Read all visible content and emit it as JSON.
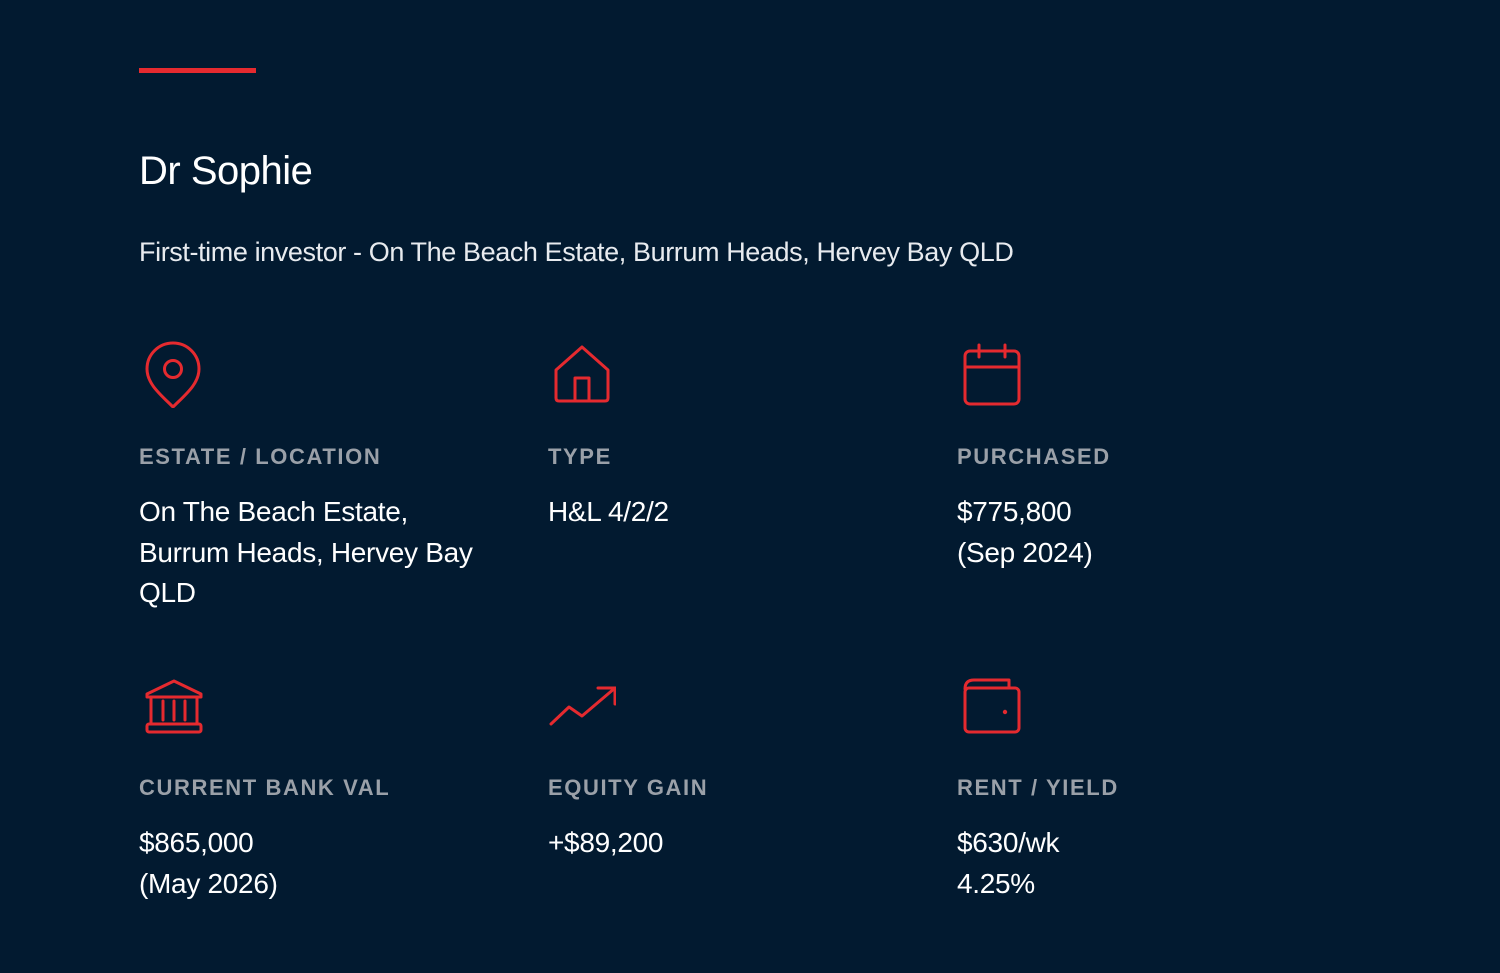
{
  "header": {
    "title": "Dr Sophie",
    "subtitle": "First-time investor - On The Beach Estate, Burrum Heads, Hervey Bay QLD"
  },
  "colors": {
    "background": "#021a30",
    "accent": "#e52a2f",
    "label": "#9aa0a8",
    "value": "#ffffff"
  },
  "stats": [
    {
      "icon": "location-pin-icon",
      "label": "ESTATE / LOCATION",
      "value": "On The Beach Estate,\nBurrum Heads, Hervey Bay\nQLD"
    },
    {
      "icon": "house-icon",
      "label": "TYPE",
      "value": "H&L 4/2/2"
    },
    {
      "icon": "calendar-icon",
      "label": "PURCHASED",
      "value": "$775,800\n(Sep 2024)"
    },
    {
      "icon": "bank-icon",
      "label": "CURRENT BANK VAL",
      "value": "$865,000\n(May 2026)"
    },
    {
      "icon": "trending-up-icon",
      "label": "EQUITY GAIN",
      "value": "+$89,200"
    },
    {
      "icon": "wallet-icon",
      "label": "RENT / YIELD",
      "value": "$630/wk\n 4.25%"
    }
  ]
}
